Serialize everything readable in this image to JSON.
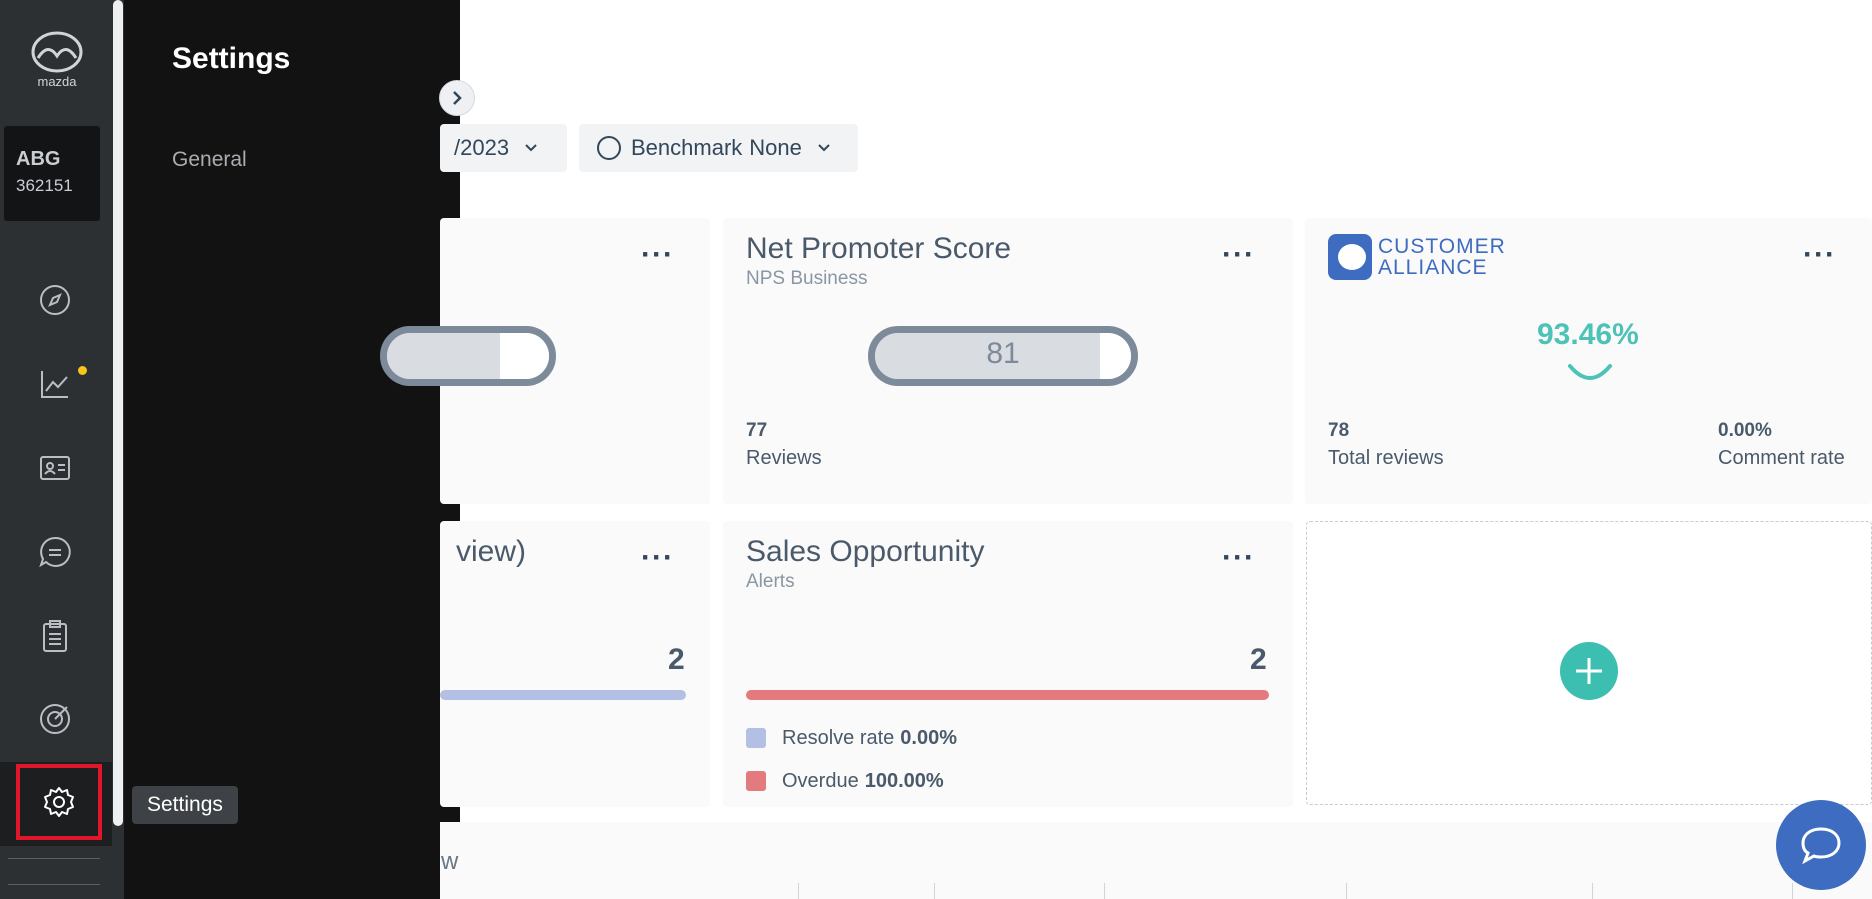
{
  "rail": {
    "org_name": "ABG",
    "org_id": "362151",
    "brand_logo_text": "mazda",
    "icons": [
      "compass-icon",
      "chart-trend-icon",
      "contact-card-icon",
      "chat-bubble-icon",
      "clipboard-icon",
      "target-icon",
      "gear-icon"
    ],
    "notification_dot_color": "#f5c518"
  },
  "tooltip": {
    "text": "Settings"
  },
  "flyout": {
    "title": "Settings",
    "items": [
      {
        "label": "General"
      }
    ]
  },
  "filters": {
    "date_value": "/2023",
    "benchmark_label": "Benchmark",
    "benchmark_value": "None"
  },
  "cards": {
    "partial_top": {
      "gauge_fill_percent": 70
    },
    "nps": {
      "title": "Net Promoter Score",
      "subtitle": "NPS Business",
      "score": "81",
      "gauge_fill_percent": 81,
      "reviews_count": "77",
      "reviews_label": "Reviews"
    },
    "customer_alliance": {
      "logo_line1": "CUSTOMER",
      "logo_line2": "ALLIANCE",
      "percentage": "93.46%",
      "total_reviews": "78",
      "total_reviews_label": "Total reviews",
      "comment_rate": "0.00%",
      "comment_rate_label": "Comment rate"
    },
    "partial_bottom": {
      "title_fragment": "view)",
      "count": "2"
    },
    "sales_opportunity": {
      "title": "Sales Opportunity",
      "subtitle": "Alerts",
      "count": "2",
      "bar_color": "#e37b7e",
      "legend": [
        {
          "label": "Resolve rate",
          "value": "0.00%",
          "color": "#b3bfe3"
        },
        {
          "label": "Overdue",
          "value": "100.00%",
          "color": "#e37b7e"
        }
      ]
    }
  },
  "bottom": {
    "title_fragment": "w"
  },
  "colors": {
    "accent_teal": "#3cbfb0",
    "brand_blue": "#3e6cc0",
    "highlight_red": "#e0162b"
  }
}
